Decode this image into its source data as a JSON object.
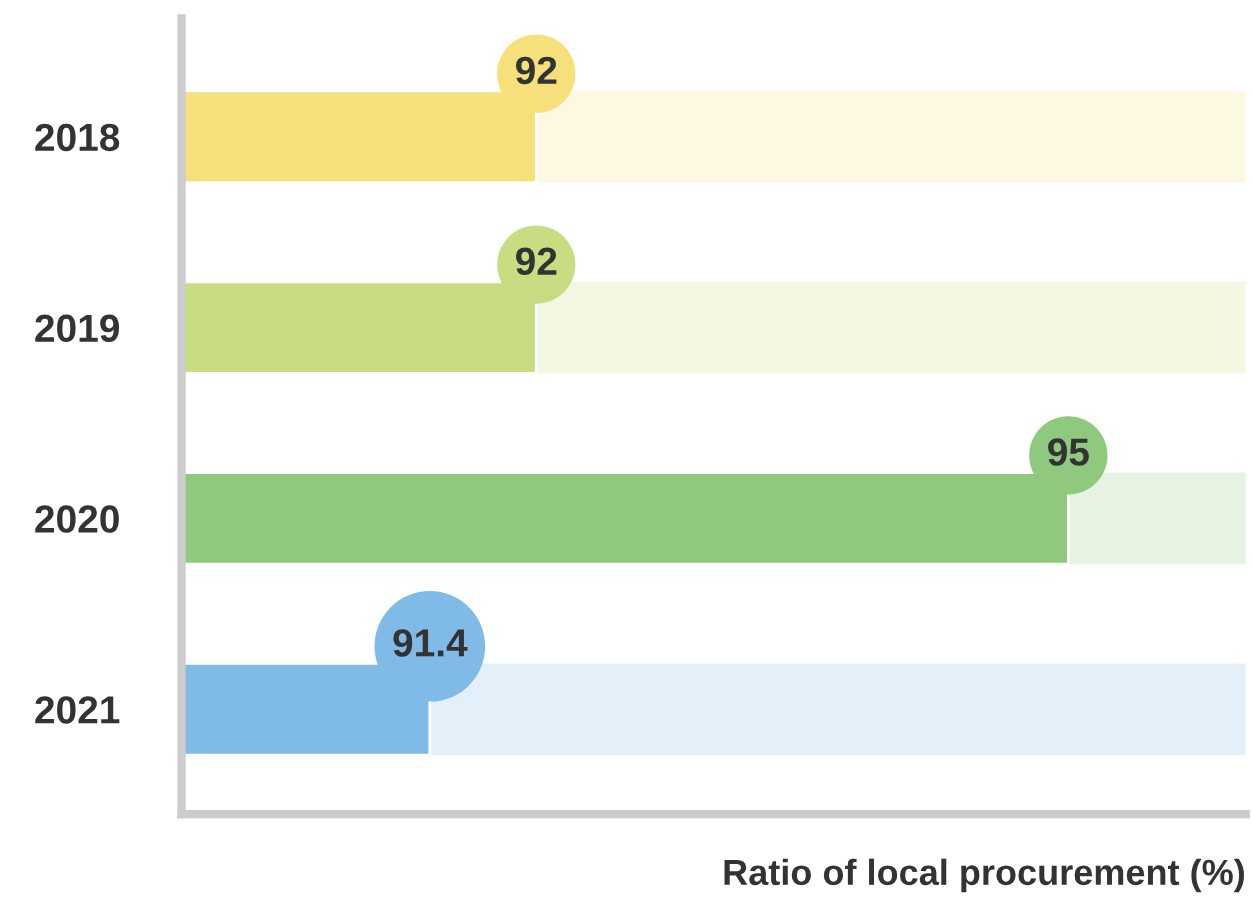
{
  "chart_data": {
    "type": "bar",
    "orientation": "horizontal",
    "xlabel": "Ratio of local procurement (%)",
    "categories": [
      "2018",
      "2019",
      "2020",
      "2021"
    ],
    "values": [
      92,
      92,
      95,
      91.4
    ],
    "colors": [
      "#f5e07a",
      "#c8dd82",
      "#8fc97e",
      "#7fbbe6"
    ],
    "xlim": [
      90,
      96
    ],
    "tick_labels": "y",
    "data_labels": true,
    "grid": false,
    "legend": false
  }
}
